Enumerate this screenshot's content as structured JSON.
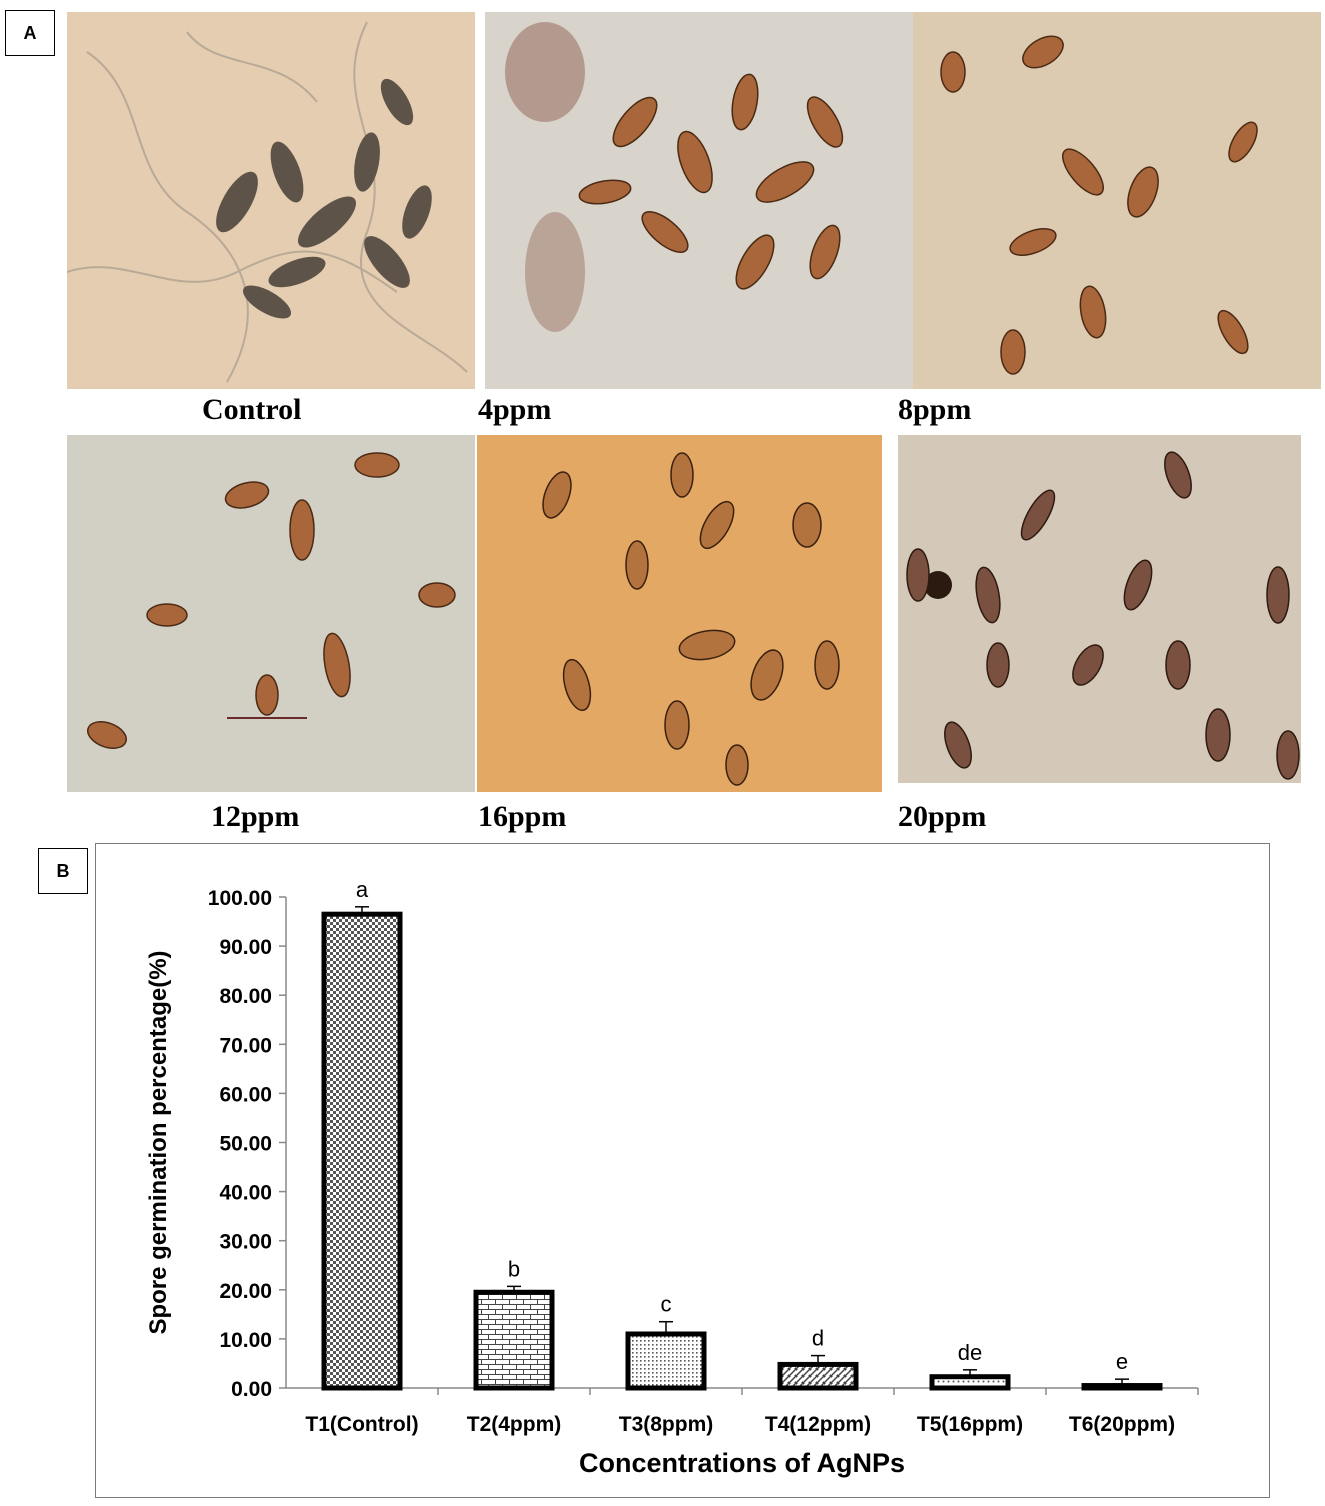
{
  "panel_a": {
    "letter": "A",
    "captions": [
      "Control",
      "4ppm",
      "8ppm",
      "12ppm",
      "16ppm",
      "20ppm"
    ]
  },
  "panel_b": {
    "letter": "B"
  },
  "chart_data": {
    "type": "bar",
    "categories": [
      "T1(Control)",
      "T2(4ppm)",
      "T3(8ppm)",
      "T4(12ppm)",
      "T5(16ppm)",
      "T6(20ppm)"
    ],
    "values": [
      96.5,
      19.5,
      11.0,
      4.8,
      2.3,
      0.5
    ],
    "errors": [
      1.5,
      1.2,
      2.5,
      1.8,
      1.4,
      1.3
    ],
    "significance_letters": [
      "a",
      "b",
      "c",
      "d",
      "de",
      "e"
    ],
    "xlabel": "Concentrations of  AgNPs",
    "ylabel": "Spore germination percentage(%)",
    "ylim": [
      0,
      100
    ],
    "yticks": [
      "0.00",
      "10.00",
      "20.00",
      "30.00",
      "40.00",
      "50.00",
      "60.00",
      "70.00",
      "80.00",
      "90.00",
      "100.00"
    ],
    "grid": false,
    "legend": "none"
  }
}
